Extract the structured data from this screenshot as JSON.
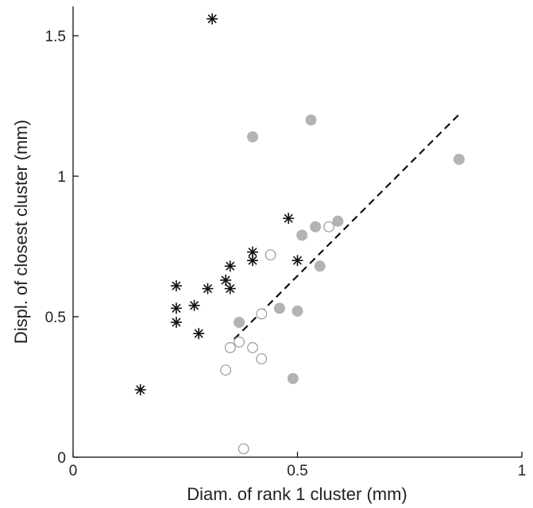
{
  "chart_data": {
    "type": "scatter",
    "title": "",
    "xlabel": "Diam. of rank 1 cluster (mm)",
    "ylabel": "Displ. of closest cluster (mm)",
    "xlim": [
      0,
      1
    ],
    "ylim": [
      0,
      1.6
    ],
    "x_ticks": [
      {
        "value": 0,
        "label": "0"
      },
      {
        "value": 0.5,
        "label": "0.5"
      },
      {
        "value": 1,
        "label": "1"
      }
    ],
    "y_ticks": [
      {
        "value": 0,
        "label": "0"
      },
      {
        "value": 0.5,
        "label": "0.5"
      },
      {
        "value": 1,
        "label": "1"
      },
      {
        "value": 1.5,
        "label": "1.5"
      }
    ],
    "grid": false,
    "legend": "none",
    "series": [
      {
        "marker": "asterisk",
        "color": "#111111",
        "points": [
          {
            "x": 0.31,
            "y": 1.56
          },
          {
            "x": 0.48,
            "y": 0.85
          },
          {
            "x": 0.4,
            "y": 0.73
          },
          {
            "x": 0.4,
            "y": 0.7
          },
          {
            "x": 0.5,
            "y": 0.7
          },
          {
            "x": 0.35,
            "y": 0.68
          },
          {
            "x": 0.34,
            "y": 0.63
          },
          {
            "x": 0.23,
            "y": 0.61
          },
          {
            "x": 0.3,
            "y": 0.6
          },
          {
            "x": 0.35,
            "y": 0.6
          },
          {
            "x": 0.27,
            "y": 0.54
          },
          {
            "x": 0.23,
            "y": 0.53
          },
          {
            "x": 0.23,
            "y": 0.48
          },
          {
            "x": 0.28,
            "y": 0.44
          },
          {
            "x": 0.15,
            "y": 0.24
          }
        ]
      },
      {
        "marker": "filled-circle",
        "color": "#b3b3b3",
        "points": [
          {
            "x": 0.53,
            "y": 1.2
          },
          {
            "x": 0.4,
            "y": 1.14
          },
          {
            "x": 0.86,
            "y": 1.06
          },
          {
            "x": 0.59,
            "y": 0.84
          },
          {
            "x": 0.54,
            "y": 0.82
          },
          {
            "x": 0.51,
            "y": 0.79
          },
          {
            "x": 0.55,
            "y": 0.68
          },
          {
            "x": 0.46,
            "y": 0.53
          },
          {
            "x": 0.5,
            "y": 0.52
          },
          {
            "x": 0.37,
            "y": 0.48
          },
          {
            "x": 0.49,
            "y": 0.28
          }
        ]
      },
      {
        "marker": "open-circle",
        "color": "#9a9a9a",
        "points": [
          {
            "x": 0.57,
            "y": 0.82
          },
          {
            "x": 0.44,
            "y": 0.72
          },
          {
            "x": 0.42,
            "y": 0.51
          },
          {
            "x": 0.37,
            "y": 0.41
          },
          {
            "x": 0.35,
            "y": 0.39
          },
          {
            "x": 0.4,
            "y": 0.39
          },
          {
            "x": 0.42,
            "y": 0.35
          },
          {
            "x": 0.34,
            "y": 0.31
          },
          {
            "x": 0.38,
            "y": 0.03
          }
        ]
      }
    ],
    "fit_line": {
      "style": "dashed",
      "color": "#111111",
      "x": [
        0.34,
        0.86
      ],
      "y": [
        0.39,
        1.22
      ]
    }
  }
}
